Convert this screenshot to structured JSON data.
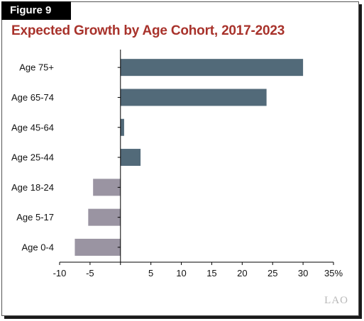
{
  "figure_label": "Figure 9",
  "title": "Expected Growth by Age Cohort, 2017-2023",
  "watermark": "LAO",
  "colors": {
    "positive": "#526a79",
    "negative": "#9a94a2",
    "title": "#a8322b"
  },
  "chart_data": {
    "type": "bar",
    "orientation": "horizontal",
    "categories": [
      "Age 75+",
      "Age 65-74",
      "Age 45-64",
      "Age 25-44",
      "Age 18-24",
      "Age 5-17",
      "Age 0-4"
    ],
    "values": [
      30,
      24,
      0.6,
      3.3,
      -4.5,
      -5.3,
      -7.5
    ],
    "xlim": [
      -10,
      35
    ],
    "xticks": [
      -10,
      -5,
      0,
      5,
      10,
      15,
      20,
      25,
      30,
      35
    ],
    "xtick_labels": [
      "-10",
      "-5",
      "",
      "5",
      "10",
      "15",
      "20",
      "25",
      "30",
      "35%"
    ],
    "grid": false
  }
}
